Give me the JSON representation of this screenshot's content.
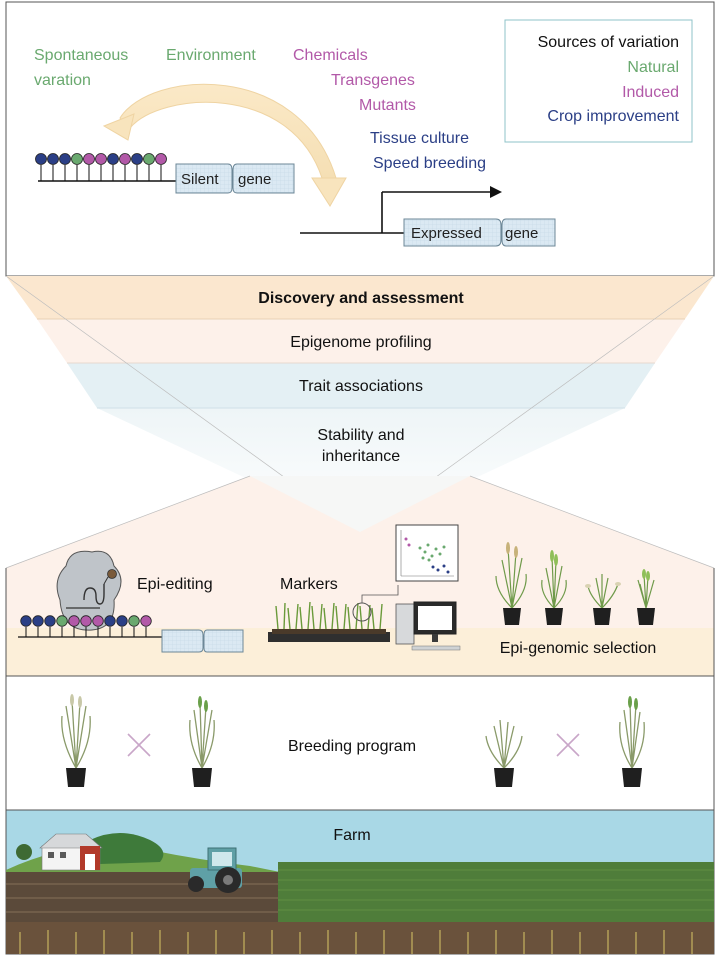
{
  "top": {
    "labels": {
      "spontaneous_1": "Spontaneous",
      "spontaneous_2": "varation",
      "environment": "Environment",
      "chemicals": "Chemicals",
      "transgenes": "Transgenes",
      "mutants": "Mutants",
      "tissue_culture": "Tissue culture",
      "speed_breeding": "Speed breeding"
    },
    "silent_gene": {
      "left": "Silent",
      "right": "gene"
    },
    "expressed_gene": {
      "left": "Expressed",
      "right": "gene"
    },
    "legend": {
      "title": "Sources of variation",
      "natural": "Natural",
      "induced": "Induced",
      "crop_improvement": "Crop improvement"
    }
  },
  "funnel": {
    "title": "Discovery and assessment",
    "step1": "Epigenome profiling",
    "step2": "Trait associations",
    "step3_line1": "Stability and",
    "step3_line2": "inheritance"
  },
  "applications": {
    "epi_editing": "Epi-editing",
    "markers": "Markers",
    "epi_genomic_selection": "Epi-genomic selection"
  },
  "breeding": {
    "label": "Breeding program"
  },
  "farm": {
    "label": "Farm"
  },
  "colors": {
    "natural": "#6aa96f",
    "induced": "#b259a8",
    "crop_improvement": "#2b3f86",
    "funnel_peach": "#fbe7cf",
    "funnel_blue": "#e3f0f5",
    "sky": "#a9d8e6",
    "gene_box": "#d8e8f2"
  }
}
